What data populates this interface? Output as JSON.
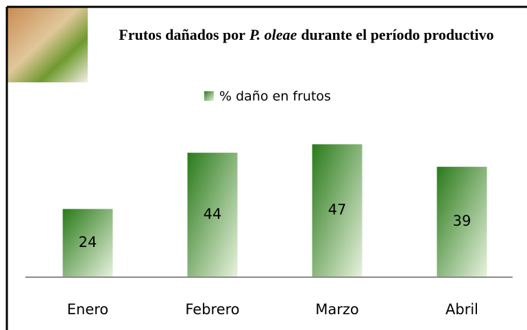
{
  "chart_data": {
    "type": "bar",
    "title": [
      "Frutos dañados por",
      "P. oleae",
      "durante el período productivo"
    ],
    "categories": [
      "Enero",
      "Febrero",
      "Marzo",
      "Abril"
    ],
    "series": [
      {
        "name": "% daño en frutos",
        "color": "#2a7a1a",
        "values": [
          24,
          44,
          47,
          39
        ]
      }
    ]
  }
}
